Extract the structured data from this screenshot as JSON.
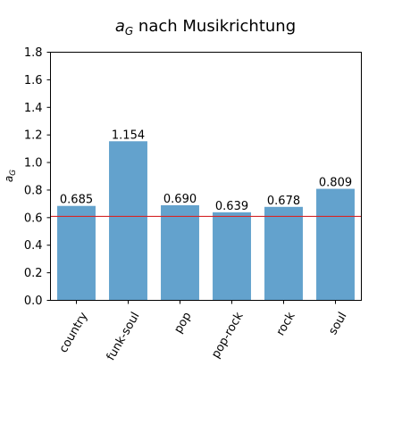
{
  "chart_data": {
    "type": "bar",
    "title_main": "a",
    "title_sub": "G",
    "title_rest": " nach Musikrichtung",
    "ylabel_main": "a",
    "ylabel_sub": "G",
    "xlabel": "",
    "categories": [
      "country",
      "funk-soul",
      "pop",
      "pop-rock",
      "rock",
      "soul"
    ],
    "values": [
      0.685,
      1.154,
      0.69,
      0.639,
      0.678,
      0.809
    ],
    "value_labels": [
      "0.685",
      "1.154",
      "0.690",
      "0.639",
      "0.678",
      "0.809"
    ],
    "yticks": [
      "0.0",
      "0.2",
      "0.4",
      "0.6",
      "0.8",
      "1.0",
      "1.2",
      "1.4",
      "1.6",
      "1.8"
    ],
    "ylim": [
      0,
      1.8
    ],
    "reference_line": 0.609,
    "bar_color": "#63a2cd",
    "line_color": "#d62728",
    "grid": false,
    "legend": "none"
  }
}
